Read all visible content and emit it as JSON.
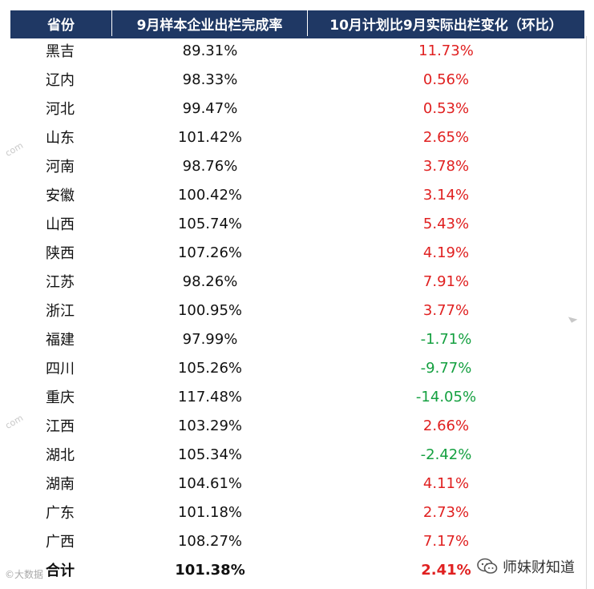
{
  "table": {
    "headers": [
      "省份",
      "9月样本企业出栏完成率",
      "10月计划比9月实际出栏变化（环比）"
    ],
    "rows": [
      {
        "province": "黑吉",
        "completion": "89.31%",
        "change": "11.73%",
        "sign": "pos"
      },
      {
        "province": "辽内",
        "completion": "98.33%",
        "change": "0.56%",
        "sign": "pos"
      },
      {
        "province": "河北",
        "completion": "99.47%",
        "change": "0.53%",
        "sign": "pos"
      },
      {
        "province": "山东",
        "completion": "101.42%",
        "change": "2.65%",
        "sign": "pos"
      },
      {
        "province": "河南",
        "completion": "98.76%",
        "change": "3.78%",
        "sign": "pos"
      },
      {
        "province": "安徽",
        "completion": "100.42%",
        "change": "3.14%",
        "sign": "pos"
      },
      {
        "province": "山西",
        "completion": "105.74%",
        "change": "5.43%",
        "sign": "pos"
      },
      {
        "province": "陕西",
        "completion": "107.26%",
        "change": "4.19%",
        "sign": "pos"
      },
      {
        "province": "江苏",
        "completion": "98.26%",
        "change": "7.91%",
        "sign": "pos"
      },
      {
        "province": "浙江",
        "completion": "100.95%",
        "change": "3.77%",
        "sign": "pos"
      },
      {
        "province": "福建",
        "completion": "97.99%",
        "change": "-1.71%",
        "sign": "neg"
      },
      {
        "province": "四川",
        "completion": "105.26%",
        "change": "-9.77%",
        "sign": "neg"
      },
      {
        "province": "重庆",
        "completion": "117.48%",
        "change": "-14.05%",
        "sign": "neg"
      },
      {
        "province": "江西",
        "completion": "103.29%",
        "change": "2.66%",
        "sign": "pos"
      },
      {
        "province": "湖北",
        "completion": "105.34%",
        "change": "-2.42%",
        "sign": "neg"
      },
      {
        "province": "湖南",
        "completion": "104.61%",
        "change": "4.11%",
        "sign": "pos"
      },
      {
        "province": "广东",
        "completion": "101.18%",
        "change": "2.73%",
        "sign": "pos"
      },
      {
        "province": "广西",
        "completion": "108.27%",
        "change": "7.17%",
        "sign": "pos"
      }
    ],
    "total": {
      "province": "合计",
      "completion": "101.38%",
      "change": "2.41%",
      "sign": "pos"
    }
  },
  "footer": {
    "left_watermark": "©大数据",
    "right_brand": "师妹财知道"
  },
  "colors": {
    "header_bg": "#1f3864",
    "positive": "#e02020",
    "negative": "#14a040"
  }
}
